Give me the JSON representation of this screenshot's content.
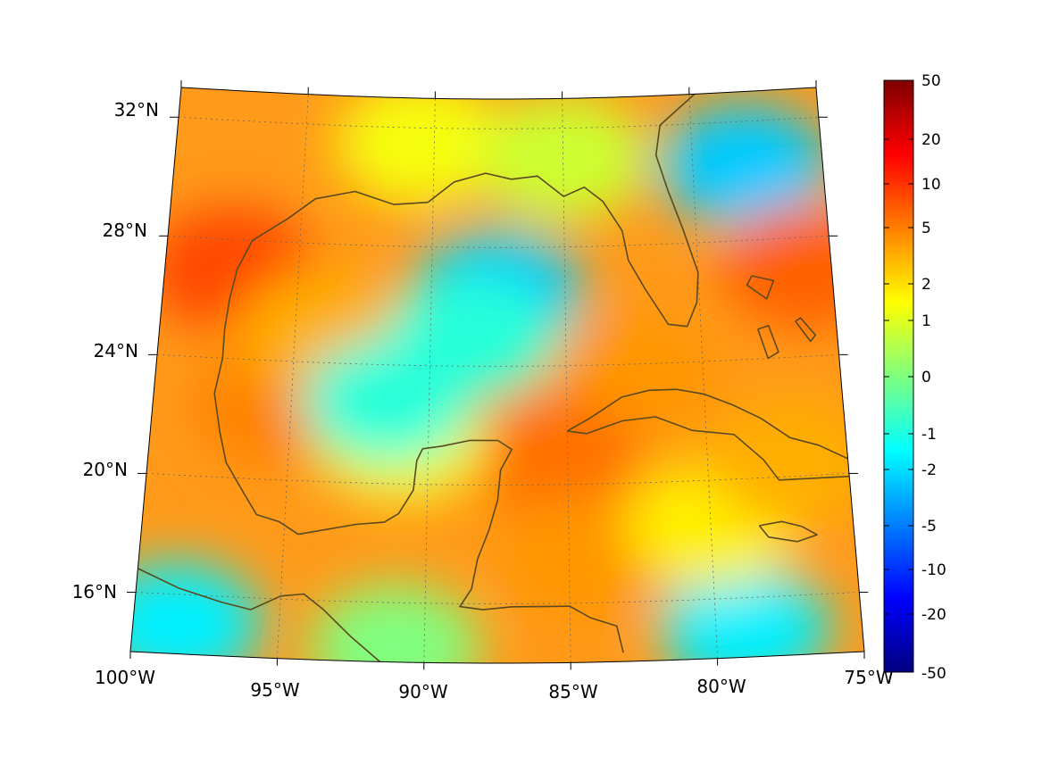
{
  "map": {
    "region": "Gulf of Mexico and Caribbean",
    "projection": "conic",
    "lon_labels": [
      "100°W",
      "95°W",
      "90°W",
      "85°W",
      "80°W",
      "75°W"
    ],
    "lat_labels": [
      "32°N",
      "28°N",
      "24°N",
      "20°N",
      "16°N"
    ],
    "grid": true,
    "coastline_color": "#5a4a1e"
  },
  "colorbar": {
    "colormap": "jet",
    "tick_labels": [
      "50",
      "20",
      "10",
      "5",
      "2",
      "1",
      "0",
      "-1",
      "-2",
      "-5",
      "-10",
      "-20",
      "-50"
    ],
    "top_color": "#7f0000",
    "bottom_color": "#00007f"
  },
  "field": {
    "blobs": [
      {
        "lon": -97.5,
        "lat": 27.0,
        "value": 10
      },
      {
        "lon": -95.5,
        "lat": 22.5,
        "value": 6
      },
      {
        "lon": -94.0,
        "lat": 25.0,
        "value": 4
      },
      {
        "lon": -87.5,
        "lat": 26.5,
        "value": -3
      },
      {
        "lon": -88.5,
        "lat": 25.0,
        "value": -1
      },
      {
        "lon": -78.0,
        "lat": 30.5,
        "value": -3
      },
      {
        "lon": -76.0,
        "lat": 27.0,
        "value": 8
      },
      {
        "lon": -82.5,
        "lat": 23.5,
        "value": 5
      },
      {
        "lon": -85.5,
        "lat": 21.0,
        "value": 7
      },
      {
        "lon": -84.5,
        "lat": 17.5,
        "value": 5
      },
      {
        "lon": -91.0,
        "lat": 21.5,
        "value": 1.5
      },
      {
        "lon": -91.5,
        "lat": 22.8,
        "value": -1
      },
      {
        "lon": -98.5,
        "lat": 15.0,
        "value": -2
      },
      {
        "lon": -91.0,
        "lat": 14.5,
        "value": 0
      },
      {
        "lon": -79.0,
        "lat": 15.0,
        "value": -2
      },
      {
        "lon": -80.0,
        "lat": 18.5,
        "value": 2
      },
      {
        "lon": -90.5,
        "lat": 31.5,
        "value": 1.5
      },
      {
        "lon": -85.0,
        "lat": 31.0,
        "value": 0.8
      },
      {
        "lon": -77.0,
        "lat": 20.5,
        "value": 4
      }
    ]
  }
}
